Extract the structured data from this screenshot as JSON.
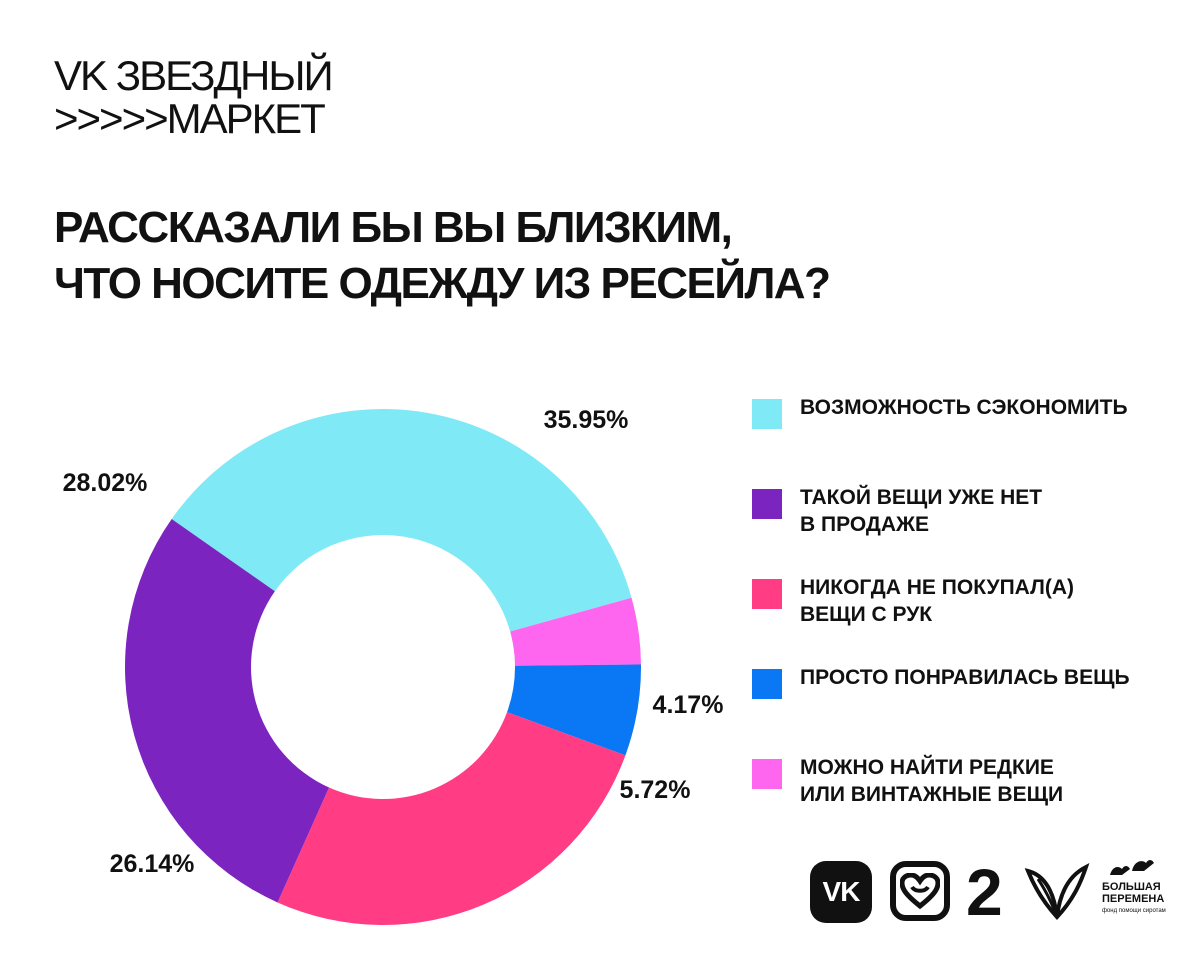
{
  "brand": {
    "line1": "VK ЗВЕЗДНЫЙ",
    "line2": ">>>>>МАРКЕТ"
  },
  "question": {
    "line1": "РАССКАЗАЛИ БЫ ВЫ БЛИЗКИМ,",
    "line2": "ЧТО НОСИТЕ ОДЕЖДУ ИЗ РЕСЕЙЛА?"
  },
  "chart_data": {
    "type": "pie",
    "donut": true,
    "start_angle_deg": -55,
    "direction": "clockwise",
    "legend_position": "right",
    "slices": [
      {
        "label": "ВОЗМОЖНОСТЬ СЭКОНОМИТЬ",
        "value": 35.95,
        "value_label": "35.95%",
        "color": "#7FE9F6"
      },
      {
        "label": "МОЖНО НАЙТИ РЕДКИЕ ИЛИ ВИНТАЖНЫЕ ВЕЩИ",
        "value": 4.17,
        "value_label": "4.17%",
        "color": "#FF66F0"
      },
      {
        "label": "ПРОСТО ПОНРАВИЛАСЬ ВЕЩЬ",
        "value": 5.72,
        "value_label": "5.72%",
        "color": "#0A78F5"
      },
      {
        "label": "НИКОГДА НЕ ПОКУПАЛ(А) ВЕЩИ С РУК",
        "value": 26.14,
        "value_label": "26.14%",
        "color": "#FF3C84"
      },
      {
        "label": "ТАКОЙ ВЕЩИ УЖЕ НЕТ В ПРОДАЖЕ",
        "value": 28.02,
        "value_label": "28.02%",
        "color": "#7B24BF"
      }
    ]
  },
  "legend": {
    "items": [
      {
        "line1": "ВОЗМОЖНОСТЬ СЭКОНОМИТЬ",
        "line2": "",
        "color": "#7FE9F6"
      },
      {
        "line1": "ТАКОЙ ВЕЩИ УЖЕ НЕТ",
        "line2": "В ПРОДАЖЕ",
        "color": "#7B24BF"
      },
      {
        "line1": "НИКОГДА НЕ ПОКУПАЛ(А)",
        "line2": "ВЕЩИ С РУК",
        "color": "#FF3C84"
      },
      {
        "line1": "ПРОСТО ПОНРАВИЛАСЬ ВЕЩЬ",
        "line2": "",
        "color": "#0A78F5"
      },
      {
        "line1": "МОЖНО НАЙТИ РЕДКИЕ",
        "line2": "ИЛИ ВИНТАЖНЫЕ ВЕЩИ",
        "color": "#FF66F0"
      }
    ]
  },
  "logos": {
    "vk_text": "VK",
    "two_text": "2",
    "bp_line1": "БОЛЬШАЯ",
    "bp_line2": "ПЕРЕМЕНА",
    "bp_sub": "фонд помощи сиротам",
    "icons": [
      "vk-logo-icon",
      "heart-logo-icon",
      "two-arrow-logo-icon",
      "wing-logo-icon",
      "birds-logo-icon"
    ]
  }
}
